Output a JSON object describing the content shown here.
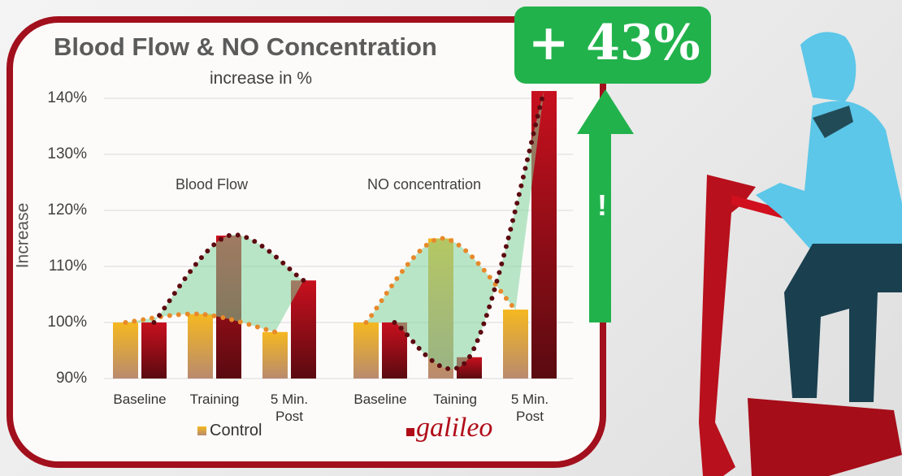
{
  "chart_data": {
    "type": "bar",
    "title": "Blood Flow & NO Concentration",
    "subtitle": "increase in %",
    "y_label": "Increase",
    "ylim": [
      90,
      140
    ],
    "yticks": [
      {
        "value": 90,
        "label": "90%"
      },
      {
        "value": 100,
        "label": "100%"
      },
      {
        "value": 110,
        "label": "110%"
      },
      {
        "value": 120,
        "label": "120%"
      },
      {
        "value": 130,
        "label": "130%"
      },
      {
        "value": 140,
        "label": "140%"
      }
    ],
    "series_names": [
      "Control",
      "galileo"
    ],
    "series_colors": [
      "#f5b820",
      "#b00c18"
    ],
    "annotations": [
      "+ 43%",
      "!"
    ],
    "panels": [
      {
        "title": "Blood Flow",
        "categories": [
          "Baseline",
          "Training",
          "5 Min. Post"
        ],
        "series": [
          {
            "values": [
              100,
              101.5,
              98.3
            ]
          },
          {
            "values": [
              100,
              115.5,
              107.5
            ]
          }
        ]
      },
      {
        "title": "NO concentration",
        "categories": [
          "Baseline",
          "Taining",
          "5 Min. Post"
        ],
        "series": [
          {
            "values": [
              100,
              115,
              102.3
            ]
          },
          {
            "values": [
              100,
              93.8,
              141.3
            ]
          }
        ]
      }
    ]
  }
}
